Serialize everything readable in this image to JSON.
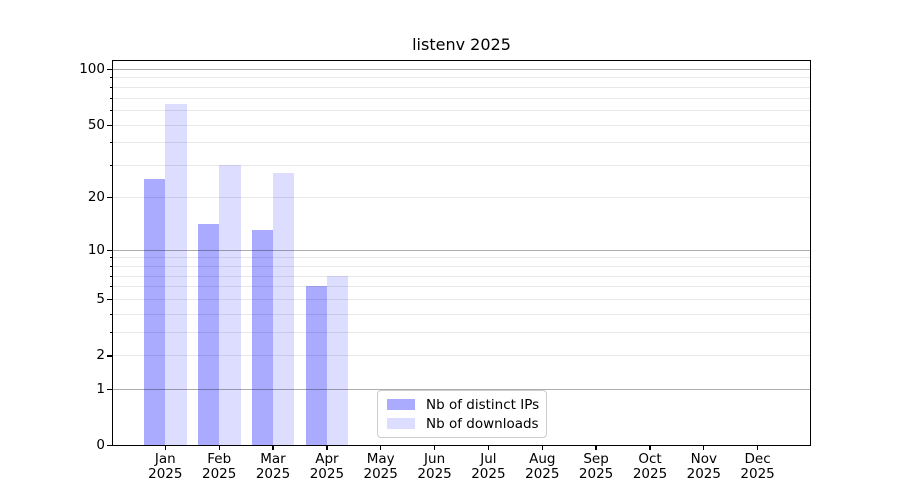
{
  "chart_data": {
    "type": "bar",
    "title": "listenv 2025",
    "categories": [
      "Jan",
      "Feb",
      "Mar",
      "Apr",
      "May",
      "Jun",
      "Jul",
      "Aug",
      "Sep",
      "Oct",
      "Nov",
      "Dec"
    ],
    "category_year": "2025",
    "series": [
      {
        "name": "Nb of distinct IPs",
        "color": "#aaaaff",
        "values": [
          25,
          14,
          13,
          6,
          0,
          0,
          0,
          0,
          0,
          0,
          0,
          0
        ]
      },
      {
        "name": "Nb of downloads",
        "color": "#ddddff",
        "values": [
          65,
          30,
          27,
          7,
          0,
          0,
          0,
          0,
          0,
          0,
          0,
          0
        ]
      }
    ],
    "yscale": "log1p",
    "ylim": [
      0,
      110
    ],
    "ytick_labels": [
      "0",
      "1",
      "2",
      "5",
      "10",
      "20",
      "50",
      "100"
    ],
    "ytick_values": [
      0,
      1,
      2,
      5,
      10,
      20,
      50,
      100
    ],
    "ymajor_gridlines": [
      1,
      10,
      100
    ],
    "yminor_gridlines": [
      2,
      3,
      4,
      5,
      6,
      7,
      8,
      9,
      20,
      30,
      40,
      50,
      60,
      70,
      80,
      90
    ],
    "grid": "on",
    "legend_position": "inside-bottom-center-left",
    "colors": {
      "major_gridline": "rgba(0,0,0,0.32)",
      "minor_gridline": "rgba(0,0,0,0.09)",
      "axis": "#000000",
      "legend_border": "#cccccc"
    }
  }
}
